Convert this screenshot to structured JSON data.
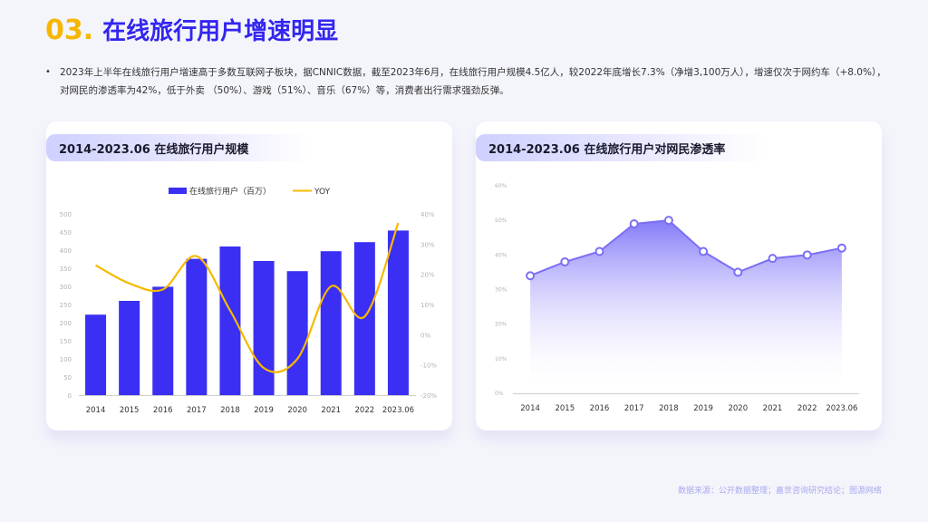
{
  "header": {
    "number": "03.",
    "title": "在线旅行用户增速明显"
  },
  "summary": {
    "bullet": "•",
    "text": "2023年上半年在线旅行用户增速高于多数互联网子板块，据CNNIC数据，截至2023年6月，在线旅行用户规模4.5亿人，较2022年底增长7.3%（净增3,100万人），增速仅次于网约车（+8.0%），对网民的渗透率为42%，低于外卖 （50%）、游戏（51%）、音乐（67%）等，消费者出行需求强劲反弹。"
  },
  "left_card": {
    "title": "2014-2023.06 在线旅行用户规模"
  },
  "right_card": {
    "title": "2014-2023.06 在线旅行用户对网民渗透率"
  },
  "source": "数据来源：公开数据整理；嘉世咨询研究结论；图源网络",
  "colors": {
    "bar": "#3a2ff2",
    "line": "#f7b900",
    "area_line": "#7b6ef6",
    "title_accent": "#f6b700",
    "title_main": "#3325f0"
  },
  "chart_data": [
    {
      "type": "bar",
      "categories": [
        "2014",
        "2015",
        "2016",
        "2017",
        "2018",
        "2019",
        "2020",
        "2021",
        "2022",
        "2023.06"
      ],
      "series": [
        {
          "name": "在线旅行用户（百万）",
          "type": "bar",
          "axis": "left",
          "values": [
            222,
            260,
            299,
            376,
            410,
            370,
            342,
            397,
            422,
            454
          ]
        },
        {
          "name": "YOY",
          "type": "line",
          "axis": "right",
          "values": [
            23,
            17,
            15,
            26,
            8,
            -11,
            -8,
            16,
            6,
            37
          ]
        }
      ],
      "y_left": {
        "min": 0,
        "max": 500,
        "ticks": [
          "0",
          "50",
          "100",
          "150",
          "200",
          "250",
          "300",
          "350",
          "400",
          "450",
          "500"
        ]
      },
      "y_right": {
        "min": -20,
        "max": 40,
        "ticks": [
          "-20%",
          "-10%",
          "0%",
          "10%",
          "20%",
          "30%",
          "40%"
        ]
      },
      "legend": "top-center",
      "grid": false
    },
    {
      "type": "area",
      "categories": [
        "2014",
        "2015",
        "2016",
        "2017",
        "2018",
        "2019",
        "2020",
        "2021",
        "2022",
        "2023.06"
      ],
      "series": [
        {
          "values": [
            34,
            38,
            41,
            49,
            50,
            41,
            35,
            39,
            40,
            42
          ]
        }
      ],
      "y": {
        "min": 0,
        "max": 60,
        "ticks": [
          "0%",
          "10%",
          "20%",
          "30%",
          "40%",
          "50%",
          "60%"
        ]
      },
      "grid": false
    }
  ]
}
